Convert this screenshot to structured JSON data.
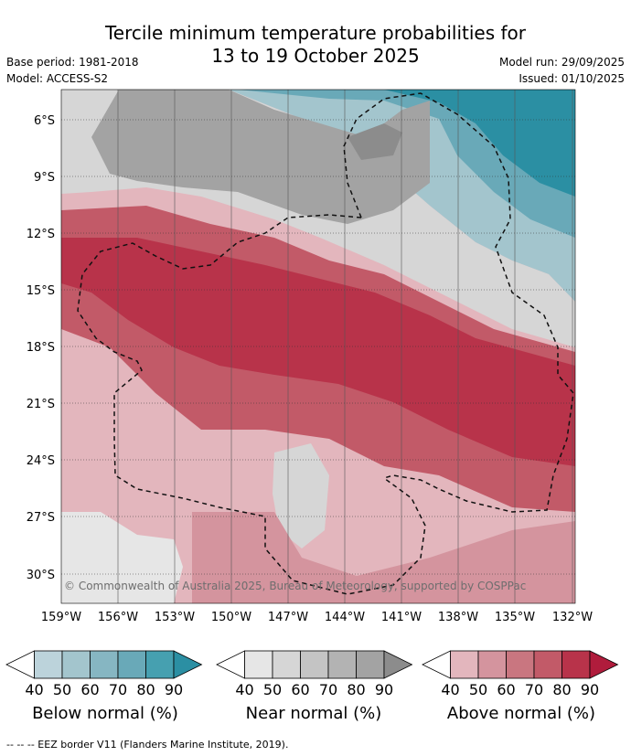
{
  "title_line1": "Tercile minimum temperature probabilities for",
  "title_line2": "13 to 19 October 2025",
  "meta": {
    "base_period": "Base period: 1981-2018",
    "model": "Model: ACCESS-S2",
    "model_run": "Model run: 29/09/2025",
    "issued": "Issued: 01/10/2025"
  },
  "map": {
    "lat_labels": [
      "6°S",
      "9°S",
      "12°S",
      "15°S",
      "18°S",
      "21°S",
      "24°S",
      "27°S",
      "30°S"
    ],
    "lon_labels": [
      "159°W",
      "156°W",
      "153°W",
      "150°W",
      "147°W",
      "144°W",
      "141°W",
      "138°W",
      "135°W",
      "132°W"
    ],
    "copyright": "© Commonwealth of Australia 2025, Bureau of Meteorology, supported by COSPPac"
  },
  "colorbars": [
    {
      "title": "Below normal (%)",
      "ticks": [
        "40",
        "50",
        "60",
        "70",
        "80",
        "90"
      ],
      "colors": [
        "#ffffff",
        "#bcd3db",
        "#a3c5cd",
        "#86b6c2",
        "#69a9b8",
        "#46a0b0",
        "#2b8fa3"
      ]
    },
    {
      "title": "Near normal (%)",
      "ticks": [
        "40",
        "50",
        "60",
        "70",
        "80",
        "90"
      ],
      "colors": [
        "#ffffff",
        "#e6e6e6",
        "#d6d6d6",
        "#c4c4c4",
        "#b3b3b3",
        "#a3a3a3",
        "#8c8c8c"
      ]
    },
    {
      "title": "Above normal (%)",
      "ticks": [
        "40",
        "50",
        "60",
        "70",
        "80",
        "90"
      ],
      "colors": [
        "#ffffff",
        "#e3b6bd",
        "#d4949e",
        "#c97680",
        "#c25a68",
        "#b8334a",
        "#b01c3c"
      ]
    }
  ],
  "footnote": "-- -- -- EEZ border V11 (Flanders Marine Institute, 2019).",
  "colors": {
    "above_80": "#b8334a",
    "above_70": "#c25a68",
    "above_60": "#c97680",
    "above_50": "#d4949e",
    "above_40": "#e3b6bd",
    "near_40": "#e6e6e6",
    "near_50": "#d6d6d6",
    "near_60": "#c4c4c4",
    "near_70": "#a3a3a3",
    "near_80": "#8c8c8c",
    "below_50": "#a3c5cd",
    "below_60": "#86b6c2",
    "below_70": "#46a0b0",
    "below_80": "#2b8fa3"
  }
}
